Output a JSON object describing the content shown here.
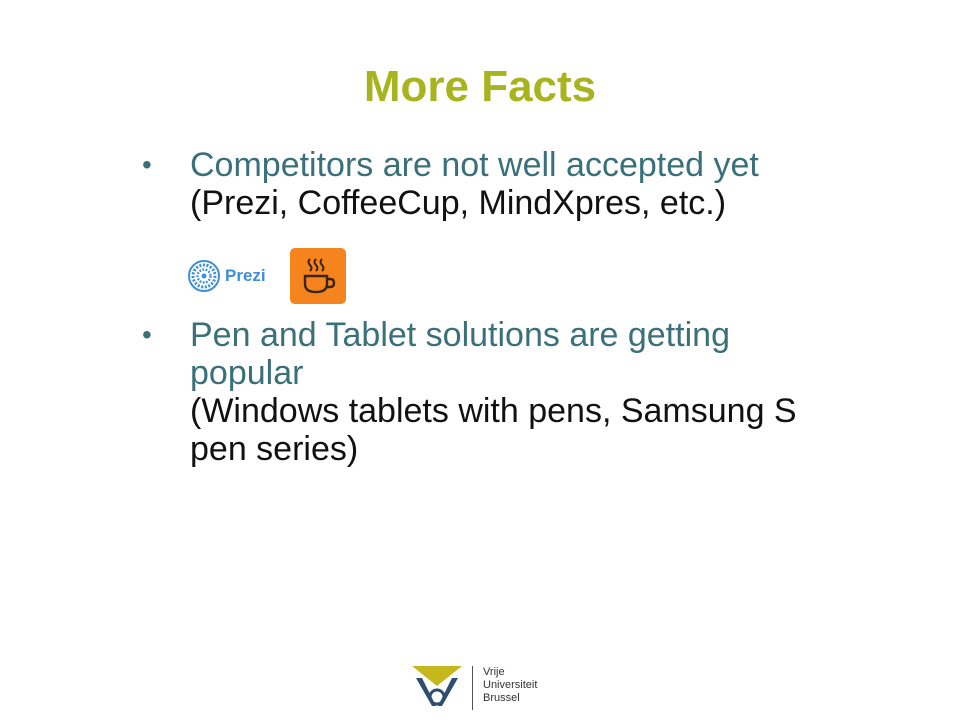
{
  "slide": {
    "title": "More Facts",
    "bullets": [
      {
        "lines": [
          {
            "text": "Competitors are not well accepted yet",
            "style": "teal"
          },
          {
            "text": "(Prezi, CoffeeCup, MindXpres, etc.)",
            "style": "black"
          }
        ]
      },
      {
        "lines": [
          {
            "text": "Pen and Tablet solutions are getting",
            "style": "teal"
          },
          {
            "text": "popular",
            "style": "teal"
          },
          {
            "text": "(Windows tablets with pens, Samsung S",
            "style": "black"
          },
          {
            "text": "pen series)",
            "style": "black"
          }
        ]
      }
    ],
    "bullet_symbol": "•",
    "logos": {
      "prezi_label": "Prezi",
      "prezi_icon": "prezi-logo-icon",
      "coffeecup_icon": "coffee-cup-icon"
    }
  },
  "footer": {
    "university_lines": [
      "Vrije",
      "Universiteit",
      "Brussel"
    ],
    "logo_icon": "vub-logo-icon"
  },
  "colors": {
    "title": "#a8b41e",
    "bullet_teal": "#3a7079",
    "text_black": "#111111",
    "prezi_blue": "#3d8ed8",
    "coffeecup_orange": "#f5841f",
    "vub_gold": "#c4b81c",
    "vub_blue": "#2f4d6f"
  }
}
